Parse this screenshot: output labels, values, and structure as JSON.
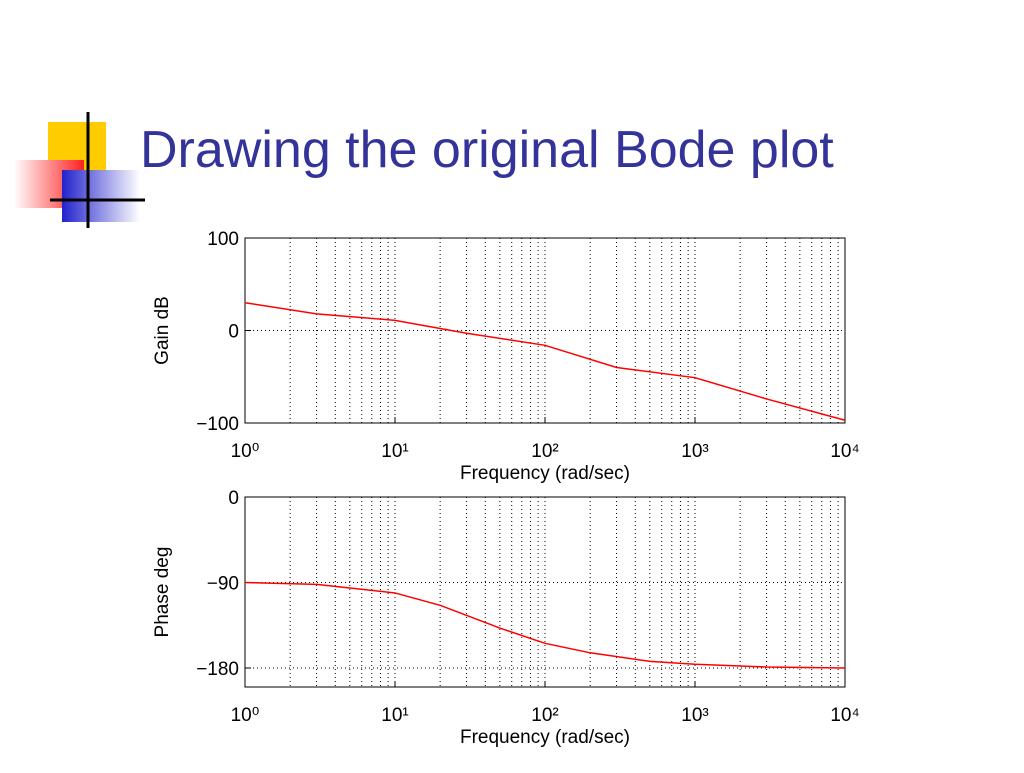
{
  "slide": {
    "title": "Drawing the original Bode plot"
  },
  "chart_data": [
    {
      "type": "line",
      "xscale": "log",
      "grid": true,
      "xlabel": "Frequency (rad/sec)",
      "ylabel": "Gain dB",
      "x": [
        1,
        3,
        10,
        30,
        100,
        300,
        1000,
        3000,
        10000
      ],
      "values": [
        30,
        18,
        11,
        -3,
        -16,
        -40,
        -51,
        -74,
        -97
      ],
      "color": "#ff0000",
      "xlim": [
        1,
        10000
      ],
      "xticks": [
        {
          "value": 1,
          "label": "10⁰"
        },
        {
          "value": 10,
          "label": "10¹"
        },
        {
          "value": 100,
          "label": "10²"
        },
        {
          "value": 1000,
          "label": "10³"
        },
        {
          "value": 10000,
          "label": "10⁴"
        }
      ],
      "ylim": [
        -100,
        100
      ],
      "yticks": [
        {
          "value": -100,
          "label": "−100"
        },
        0,
        100
      ]
    },
    {
      "type": "line",
      "xscale": "log",
      "grid": true,
      "xlabel": "Frequency (rad/sec)",
      "ylabel": "Phase deg",
      "x": [
        1,
        3,
        10,
        20,
        50,
        100,
        200,
        500,
        1000,
        3000,
        10000
      ],
      "values": [
        -90,
        -92,
        -101,
        -114,
        -138,
        -154,
        -164,
        -173,
        -176,
        -179,
        -180
      ],
      "color": "#ff0000",
      "xlim": [
        1,
        10000
      ],
      "xticks": [
        {
          "value": 1,
          "label": "10⁰"
        },
        {
          "value": 10,
          "label": "10¹"
        },
        {
          "value": 100,
          "label": "10²"
        },
        {
          "value": 1000,
          "label": "10³"
        },
        {
          "value": 10000,
          "label": "10⁴"
        }
      ],
      "ylim": [
        -200,
        0
      ],
      "yticks": [
        {
          "value": -180,
          "label": "−180"
        },
        {
          "value": -90,
          "label": "−90"
        },
        0
      ]
    }
  ]
}
